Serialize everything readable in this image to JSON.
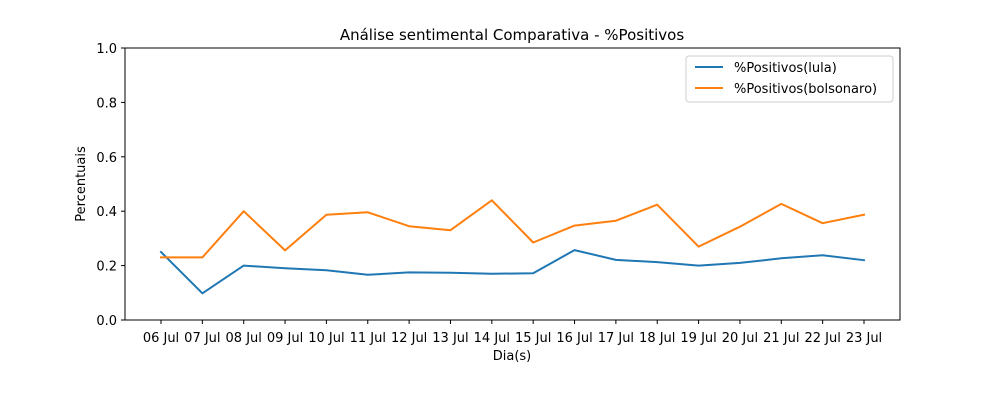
{
  "chart_data": {
    "type": "line",
    "title": "Análise sentimental Comparativa - %Positivos",
    "xlabel": "Dia(s)",
    "ylabel": "Percentuais",
    "ylim": [
      0.0,
      1.0
    ],
    "yticks": [
      "0.0",
      "0.2",
      "0.4",
      "0.6",
      "0.8",
      "1.0"
    ],
    "categories": [
      "06 Jul",
      "07 Jul",
      "08 Jul",
      "09 Jul",
      "10 Jul",
      "11 Jul",
      "12 Jul",
      "13 Jul",
      "14 Jul",
      "15 Jul",
      "16 Jul",
      "17 Jul",
      "18 Jul",
      "19 Jul",
      "20 Jul",
      "21 Jul",
      "22 Jul",
      "23 Jul"
    ],
    "series": [
      {
        "name": "%Positivos(lula)",
        "color": "#1f77b4",
        "values": [
          0.25,
          0.098,
          0.2,
          0.19,
          0.183,
          0.166,
          0.175,
          0.174,
          0.17,
          0.172,
          0.257,
          0.221,
          0.213,
          0.2,
          0.21,
          0.227,
          0.238,
          0.22
        ]
      },
      {
        "name": "%Positivos(bolsonaro)",
        "color": "#ff7f0e",
        "values": [
          0.23,
          0.23,
          0.4,
          0.256,
          0.387,
          0.396,
          0.345,
          0.33,
          0.44,
          0.285,
          0.347,
          0.365,
          0.424,
          0.27,
          0.343,
          0.427,
          0.356,
          0.387
        ]
      }
    ],
    "legend_position": "top-right",
    "grid": false
  }
}
